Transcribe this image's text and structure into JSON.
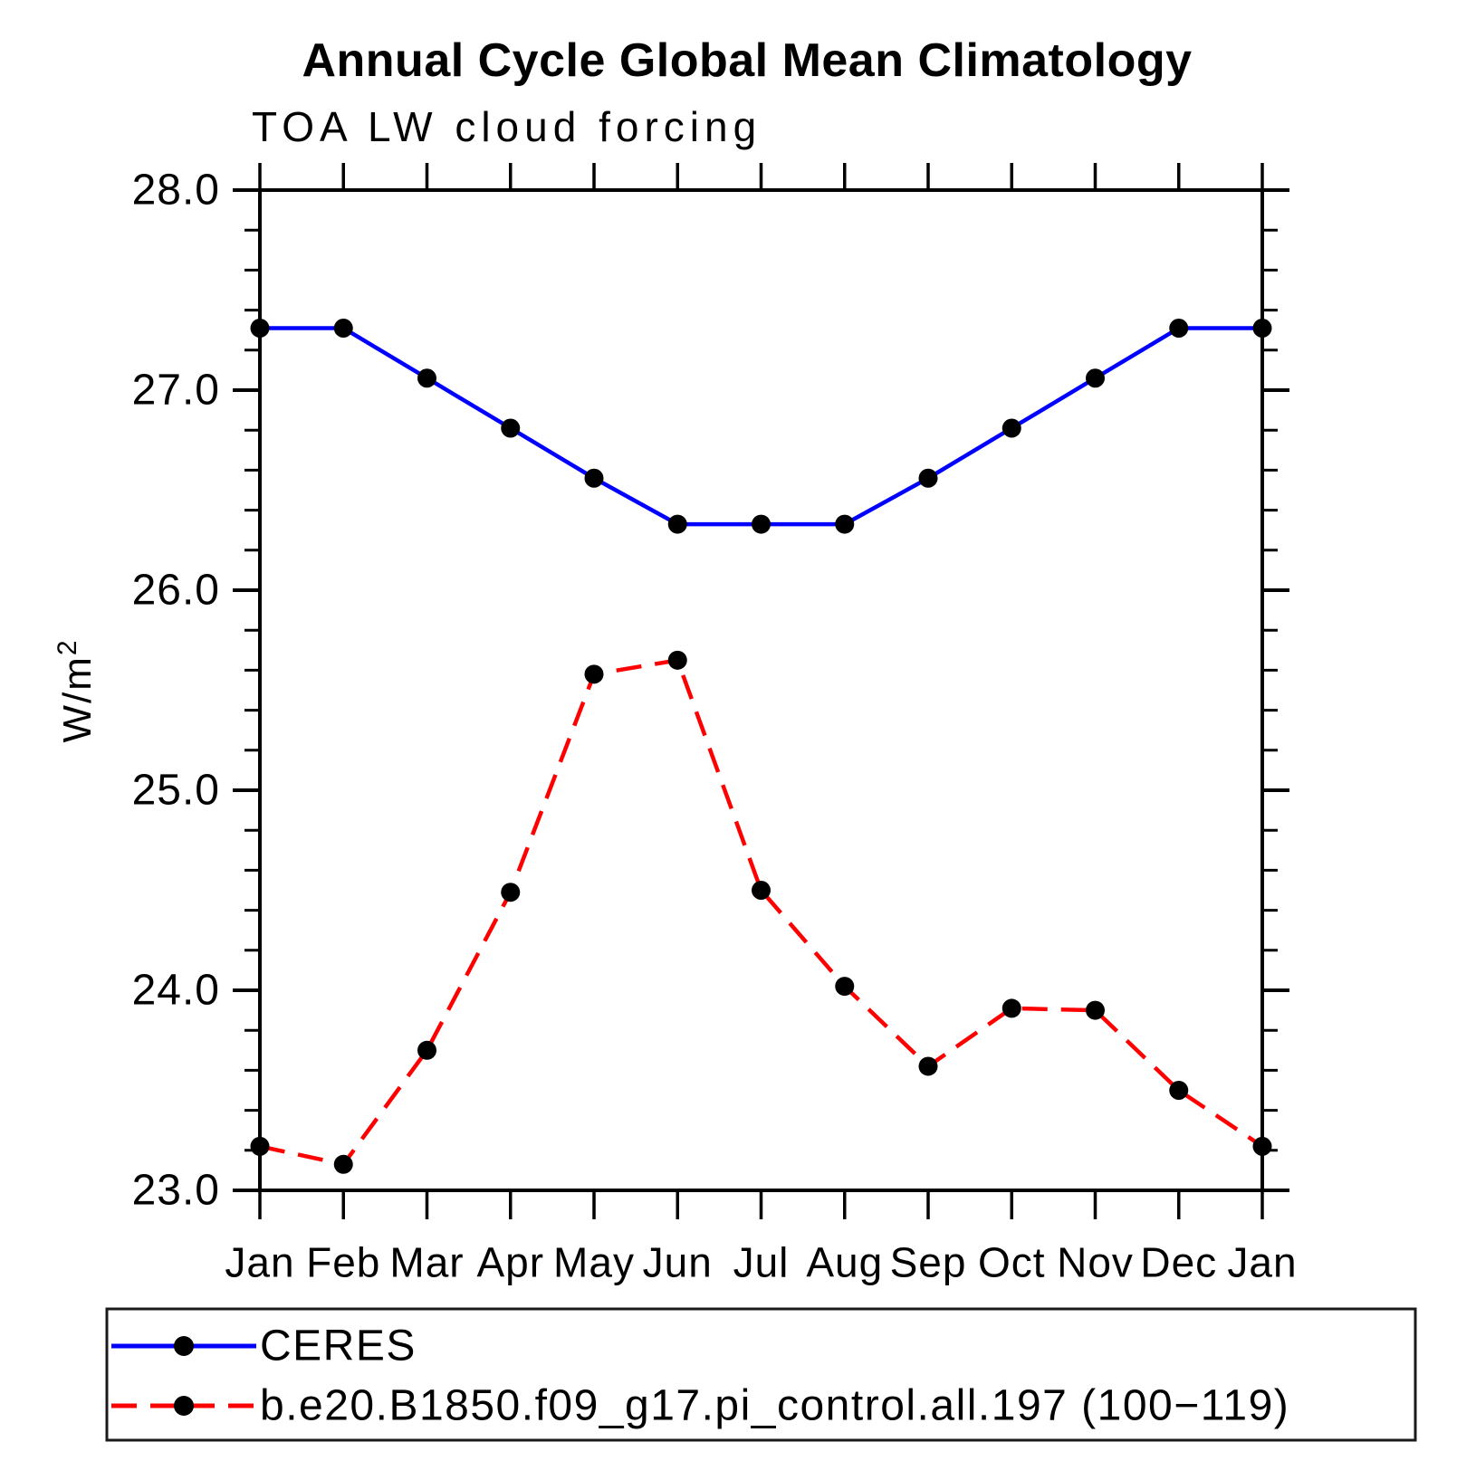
{
  "chart": {
    "ylabel_base": "W/m",
    "ylabel_exp": "2"
  },
  "chart_data": {
    "type": "line",
    "title": "Annual Cycle Global Mean Climatology",
    "subtitle": "TOA LW cloud forcing",
    "ylabel": "W/m²",
    "xlabel": "",
    "ylim": [
      23.0,
      28.0
    ],
    "ytick_major": [
      23.0,
      24.0,
      25.0,
      26.0,
      27.0,
      28.0
    ],
    "ytick_labels": [
      "23.0",
      "24.0",
      "25.0",
      "26.0",
      "27.0",
      "28.0"
    ],
    "ytick_minor_step": 0.2,
    "grid": false,
    "legend_position": "bottom",
    "categories": [
      "Jan",
      "Feb",
      "Mar",
      "Apr",
      "May",
      "Jun",
      "Jul",
      "Aug",
      "Sep",
      "Oct",
      "Nov",
      "Dec",
      "Jan"
    ],
    "series": [
      {
        "name": "CERES",
        "color": "#0000ff",
        "style": "solid",
        "marker": "circle",
        "marker_color": "#000000",
        "values": [
          27.31,
          27.31,
          27.06,
          26.81,
          26.56,
          26.33,
          26.33,
          26.33,
          26.56,
          26.81,
          27.06,
          27.31,
          27.31
        ]
      },
      {
        "name": "b.e20.B1850.f09_g17.pi_control.all.197 (100−119)",
        "color": "#ff0000",
        "style": "dashed",
        "marker": "circle",
        "marker_color": "#000000",
        "values": [
          23.22,
          23.13,
          23.7,
          24.49,
          25.58,
          25.65,
          24.5,
          24.02,
          23.62,
          23.91,
          23.9,
          23.5,
          23.22
        ]
      }
    ]
  }
}
